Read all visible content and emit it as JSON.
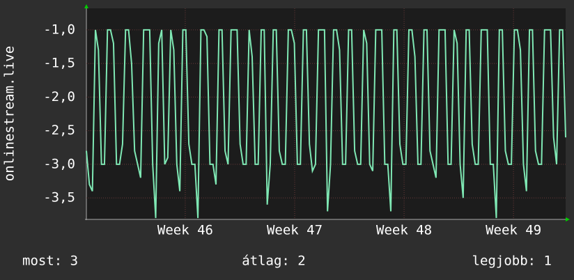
{
  "chart_data": {
    "type": "line",
    "y_label": "onlinestream.live",
    "series": [
      {
        "name": "onlinestream.live",
        "color": "#7fe8b4",
        "values": [
          -2.8,
          -3.3,
          -3.4,
          -1,
          -1.3,
          -3,
          -3,
          -1,
          -1,
          -1.2,
          -3,
          -3,
          -2.7,
          -1,
          -1,
          -1.5,
          -2.8,
          -3,
          -3.2,
          -1,
          -1,
          -1,
          -3,
          -3.8,
          -1.2,
          -1,
          -3,
          -2.9,
          -1,
          -1.3,
          -3,
          -3.4,
          -1,
          -1,
          -2.7,
          -3,
          -3,
          -3.8,
          -1,
          -1,
          -1.1,
          -3,
          -3,
          -3.3,
          -1,
          -1,
          -2.8,
          -3,
          -1,
          -1,
          -1,
          -2.7,
          -3,
          -3,
          -1,
          -1.4,
          -3,
          -3,
          -1,
          -1,
          -3.6,
          -3,
          -1,
          -1,
          -2.8,
          -3,
          -3,
          -1,
          -1,
          -1.2,
          -3,
          -3,
          -1,
          -1,
          -2.7,
          -3.1,
          -3,
          -1,
          -1,
          -1,
          -3.7,
          -3,
          -1,
          -1,
          -1.3,
          -3,
          -3,
          -1,
          -1,
          -2.8,
          -3,
          -3,
          -1,
          -1.2,
          -3,
          -3.1,
          -1,
          -1,
          -1,
          -3,
          -3,
          -3.7,
          -1,
          -1,
          -2.7,
          -3,
          -3,
          -1,
          -1,
          -1.4,
          -3,
          -3,
          -1,
          -1,
          -2.8,
          -3,
          -3.2,
          -1,
          -1,
          -1,
          -3,
          -3,
          -1,
          -1.2,
          -3,
          -3.5,
          -1,
          -1,
          -2.7,
          -3,
          -3,
          -1,
          -1,
          -1,
          -3,
          -3,
          -3.8,
          -1,
          -1,
          -2.8,
          -3,
          -3,
          -1,
          -1,
          -1.3,
          -3,
          -3.4,
          -1,
          -1,
          -2.8,
          -3,
          -3,
          -1,
          -1,
          -1,
          -2.6,
          -3,
          -1,
          -1,
          -2.6
        ]
      }
    ],
    "xlim": [
      0,
      159
    ],
    "xticks": [
      {
        "value": 32.8,
        "label": "Week 46"
      },
      {
        "value": 69.1,
        "label": "Week 47"
      },
      {
        "value": 105.4,
        "label": "Week 48"
      },
      {
        "value": 141.7,
        "label": "Week 49"
      }
    ],
    "ylim": [
      -3.82,
      -0.68
    ],
    "yticks": [
      {
        "value": -1,
        "label": "-1,0"
      },
      {
        "value": -1.5,
        "label": "-1,5"
      },
      {
        "value": -2,
        "label": "-2,0"
      },
      {
        "value": -2.5,
        "label": "-2,5"
      },
      {
        "value": -3,
        "label": "-3,0"
      },
      {
        "value": -3.5,
        "label": "-3,5"
      }
    ],
    "grid": true,
    "footer": [
      "most: 3",
      "átlag: 2",
      "legjobb: 1"
    ]
  }
}
